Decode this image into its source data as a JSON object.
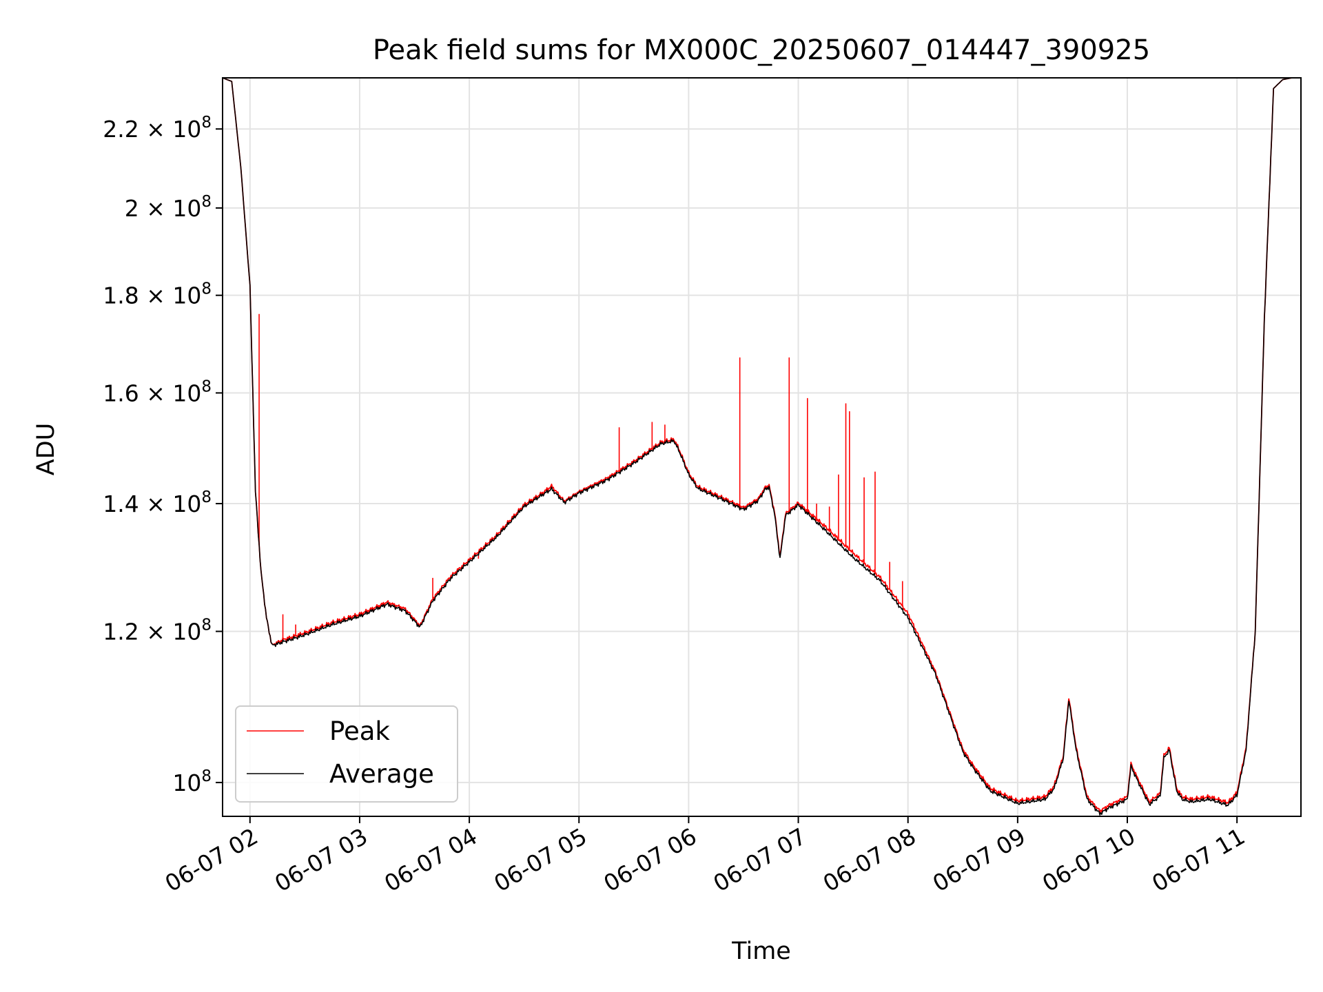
{
  "chart_data": {
    "type": "line",
    "title": "Peak field sums for MX000C_20250607_014447_390925",
    "xlabel": "Time",
    "ylabel": "ADU",
    "yscale": "log",
    "grid": true,
    "legend_position": "lower-left",
    "xlim": [
      "06-07 01:45",
      "06-07 11:35"
    ],
    "ylim": [
      96000000,
      234000000
    ],
    "x_ticks": [
      "06-07 02",
      "06-07 03",
      "06-07 04",
      "06-07 05",
      "06-07 06",
      "06-07 07",
      "06-07 08",
      "06-07 09",
      "06-07 10",
      "06-07 11"
    ],
    "y_ticks": [
      {
        "value": 100000000,
        "mantissa": "",
        "label": "10"
      },
      {
        "value": 120000000,
        "mantissa": "1.2",
        "label": "10"
      },
      {
        "value": 140000000,
        "mantissa": "1.4",
        "label": "10"
      },
      {
        "value": 160000000,
        "mantissa": "1.6",
        "label": "10"
      },
      {
        "value": 180000000,
        "mantissa": "1.8",
        "label": "10"
      },
      {
        "value": 200000000,
        "mantissa": "2",
        "label": "10"
      },
      {
        "value": 220000000,
        "mantissa": "2.2",
        "label": "10"
      }
    ],
    "y_exponent": "8",
    "x": [
      "06-07 01:45",
      "06-07 01:50",
      "06-07 01:55",
      "06-07 02:00",
      "06-07 02:03",
      "06-07 02:06",
      "06-07 02:09",
      "06-07 02:12",
      "06-07 02:15",
      "06-07 02:18",
      "06-07 02:22",
      "06-07 02:30",
      "06-07 02:45",
      "06-07 03:00",
      "06-07 03:15",
      "06-07 03:25",
      "06-07 03:33",
      "06-07 03:40",
      "06-07 03:50",
      "06-07 04:00",
      "06-07 04:15",
      "06-07 04:30",
      "06-07 04:40",
      "06-07 04:45",
      "06-07 04:52",
      "06-07 05:00",
      "06-07 05:15",
      "06-07 05:30",
      "06-07 05:45",
      "06-07 05:52",
      "06-07 05:55",
      "06-07 06:00",
      "06-07 06:05",
      "06-07 06:20",
      "06-07 06:30",
      "06-07 06:38",
      "06-07 06:42",
      "06-07 06:44",
      "06-07 06:47",
      "06-07 06:50",
      "06-07 06:53",
      "06-07 07:00",
      "06-07 07:15",
      "06-07 07:30",
      "06-07 07:45",
      "06-07 08:00",
      "06-07 08:15",
      "06-07 08:30",
      "06-07 08:35",
      "06-07 08:45",
      "06-07 09:00",
      "06-07 09:15",
      "06-07 09:20",
      "06-07 09:25",
      "06-07 09:28",
      "06-07 09:32",
      "06-07 09:38",
      "06-07 09:45",
      "06-07 09:50",
      "06-07 10:00",
      "06-07 10:02",
      "06-07 10:05",
      "06-07 10:12",
      "06-07 10:18",
      "06-07 10:20",
      "06-07 10:23",
      "06-07 10:27",
      "06-07 10:30",
      "06-07 10:35",
      "06-07 10:45",
      "06-07 10:55",
      "06-07 11:00",
      "06-07 11:05",
      "06-07 11:10",
      "06-07 11:15",
      "06-07 11:20",
      "06-07 11:25",
      "06-07 11:30",
      "06-07 11:35"
    ],
    "series": [
      {
        "name": "Average",
        "color": "#000000",
        "values": [
          234000000,
          233000000,
          210000000,
          182000000,
          142000000,
          129000000,
          122000000,
          118000000,
          118200000,
          118500000,
          118800000,
          119500000,
          121000000,
          122200000,
          124000000,
          123000000,
          120600000,
          124500000,
          128000000,
          130500000,
          134500000,
          139500000,
          141500000,
          142500000,
          140200000,
          141800000,
          144000000,
          147000000,
          150500000,
          151000000,
          149000000,
          145000000,
          142600000,
          140500000,
          139000000,
          140500000,
          142500000,
          142800000,
          138300000,
          131000000,
          138000000,
          139800000,
          135500000,
          131200000,
          127500000,
          122000000,
          114000000,
          103800000,
          102000000,
          99000000,
          97500000,
          98000000,
          99300000,
          103000000,
          110500000,
          104000000,
          98000000,
          96300000,
          97000000,
          98000000,
          102000000,
          100500000,
          97400000,
          98400000,
          103000000,
          104000000,
          99000000,
          98000000,
          97700000,
          98000000,
          97300000,
          98500000,
          104000000,
          120000000,
          175000000,
          231000000,
          233500000,
          234000000,
          234000000
        ]
      },
      {
        "name": "Peak",
        "color": "#ff0000",
        "values": [
          234000000,
          233000000,
          210000000,
          182000000,
          142000000,
          129000000,
          122000000,
          118000000,
          118400000,
          118800000,
          119100000,
          119800000,
          121300000,
          122500000,
          124300000,
          123300000,
          120800000,
          124800000,
          128300000,
          130800000,
          134800000,
          139800000,
          141800000,
          143000000,
          140400000,
          142000000,
          144300000,
          147300000,
          150800000,
          151300000,
          149300000,
          145300000,
          142900000,
          140800000,
          139300000,
          140800000,
          142800000,
          143100000,
          138600000,
          131300000,
          138300000,
          140100000,
          136100000,
          131900000,
          128000000,
          122600000,
          114300000,
          104100000,
          102300000,
          99300000,
          97800000,
          98300000,
          99600000,
          103300000,
          110800000,
          104300000,
          98300000,
          96600000,
          97300000,
          98300000,
          102300000,
          100800000,
          97700000,
          98700000,
          103300000,
          104300000,
          99300000,
          98300000,
          98000000,
          98300000,
          97600000,
          98800000,
          104300000,
          120000000,
          175000000,
          231000000,
          233500000,
          234000000,
          234000000
        ],
        "spikes": [
          {
            "x": "06-07 02:05",
            "value": 176000000
          },
          {
            "x": "06-07 02:18",
            "value": 122500000
          },
          {
            "x": "06-07 02:25",
            "value": 121000000
          },
          {
            "x": "06-07 03:40",
            "value": 128000000
          },
          {
            "x": "06-07 04:05",
            "value": 131000000
          },
          {
            "x": "06-07 05:22",
            "value": 153500000
          },
          {
            "x": "06-07 05:40",
            "value": 154500000
          },
          {
            "x": "06-07 05:47",
            "value": 154000000
          },
          {
            "x": "06-07 06:28",
            "value": 167000000
          },
          {
            "x": "06-07 06:55",
            "value": 167000000
          },
          {
            "x": "06-07 07:05",
            "value": 159000000
          },
          {
            "x": "06-07 07:10",
            "value": 140000000
          },
          {
            "x": "06-07 07:17",
            "value": 139500000
          },
          {
            "x": "06-07 07:22",
            "value": 145000000
          },
          {
            "x": "06-07 07:26",
            "value": 158000000
          },
          {
            "x": "06-07 07:28",
            "value": 156500000
          },
          {
            "x": "06-07 07:36",
            "value": 144500000
          },
          {
            "x": "06-07 07:42",
            "value": 145500000
          },
          {
            "x": "06-07 07:50",
            "value": 130500000
          },
          {
            "x": "06-07 07:57",
            "value": 127500000
          }
        ]
      }
    ]
  }
}
